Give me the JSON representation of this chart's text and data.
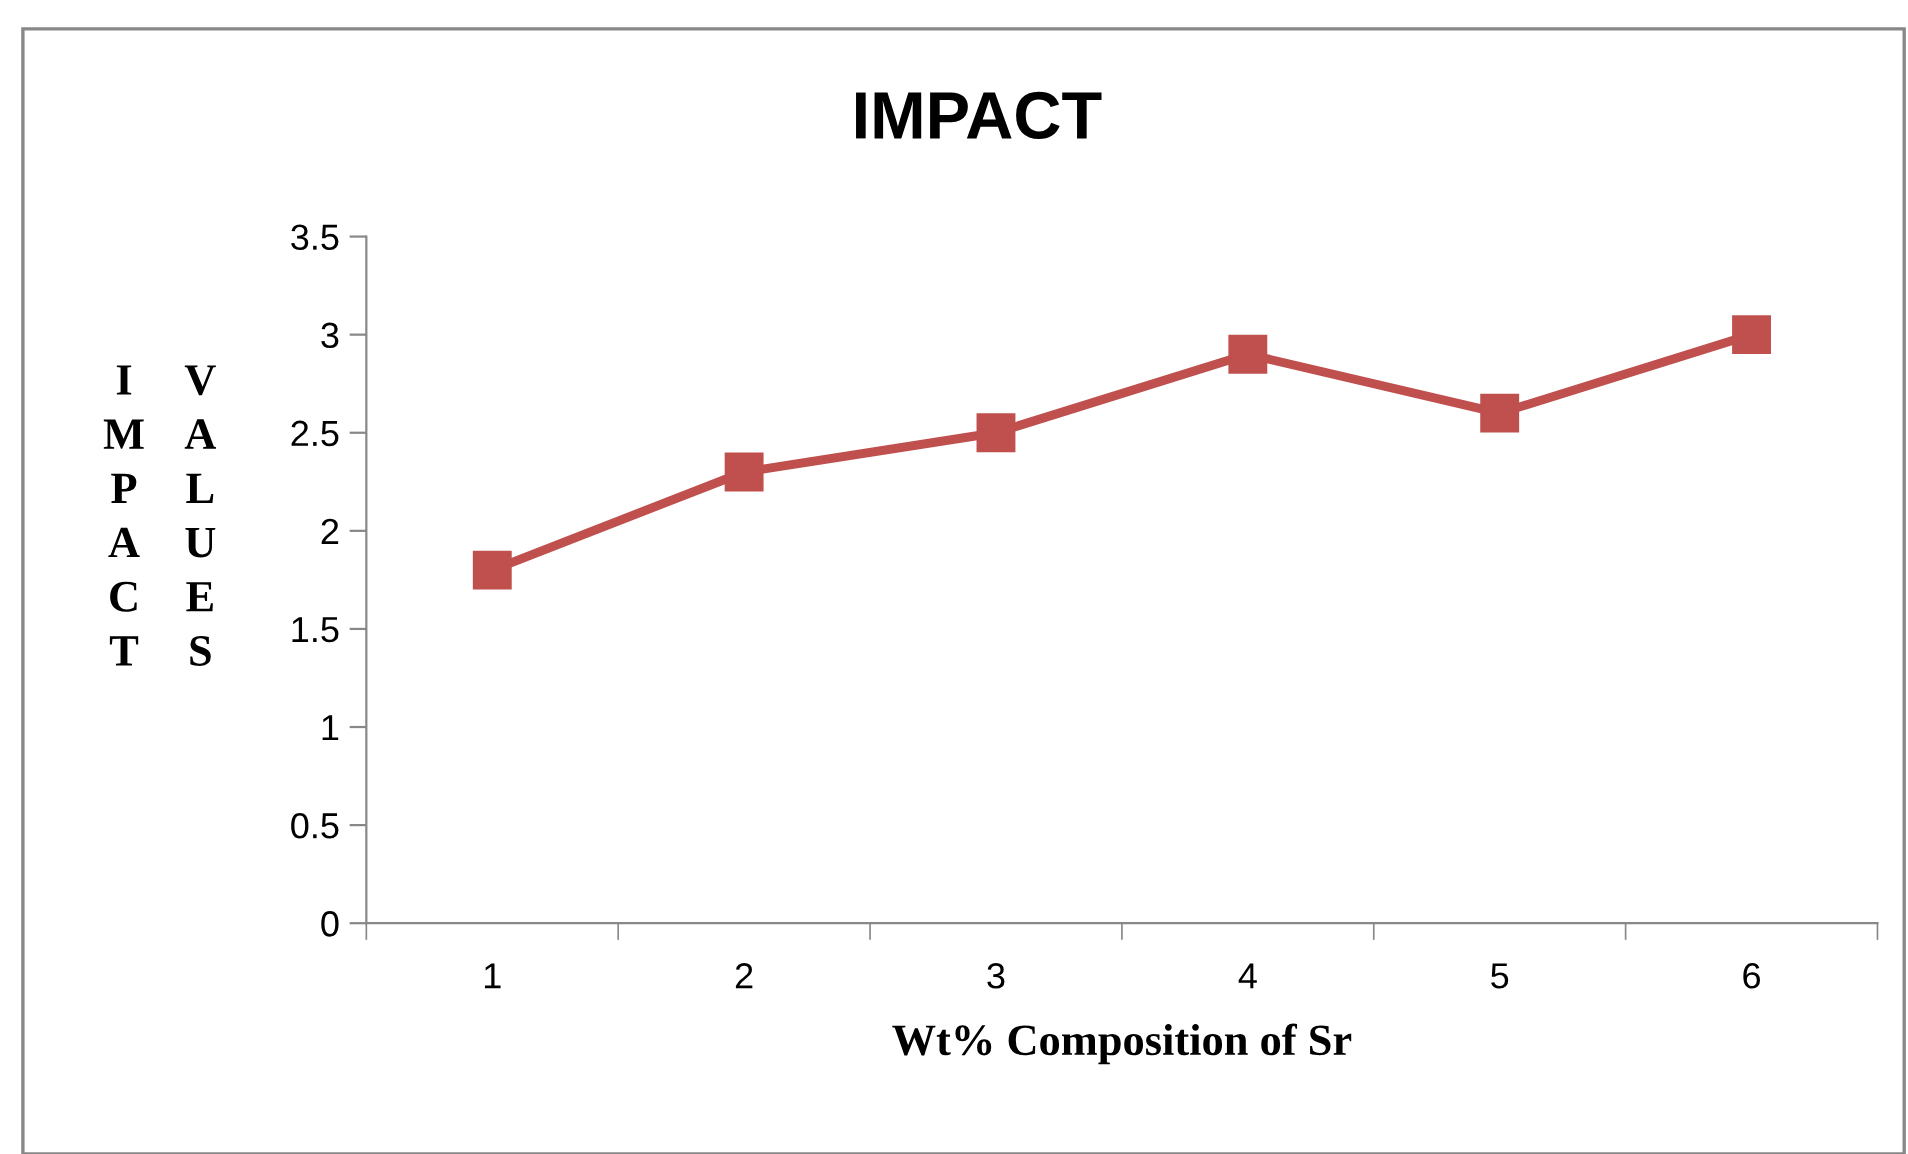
{
  "chart_data": {
    "type": "line",
    "title": "IMPACT",
    "xlabel": "Wt% Composition of Sr",
    "ylabel": "IMPACT VALUES",
    "categories": [
      "1",
      "2",
      "3",
      "4",
      "5",
      "6"
    ],
    "series": [
      {
        "color": "#c0504d",
        "values": [
          1.8,
          2.3,
          2.5,
          2.9,
          2.6,
          3.0
        ]
      }
    ],
    "ylim": [
      0,
      3.5
    ],
    "yticks": [
      0,
      0.5,
      1,
      1.5,
      2,
      2.5,
      3,
      3.5
    ],
    "grid": false,
    "legend": false,
    "marker": "square",
    "line_style": "solid"
  }
}
